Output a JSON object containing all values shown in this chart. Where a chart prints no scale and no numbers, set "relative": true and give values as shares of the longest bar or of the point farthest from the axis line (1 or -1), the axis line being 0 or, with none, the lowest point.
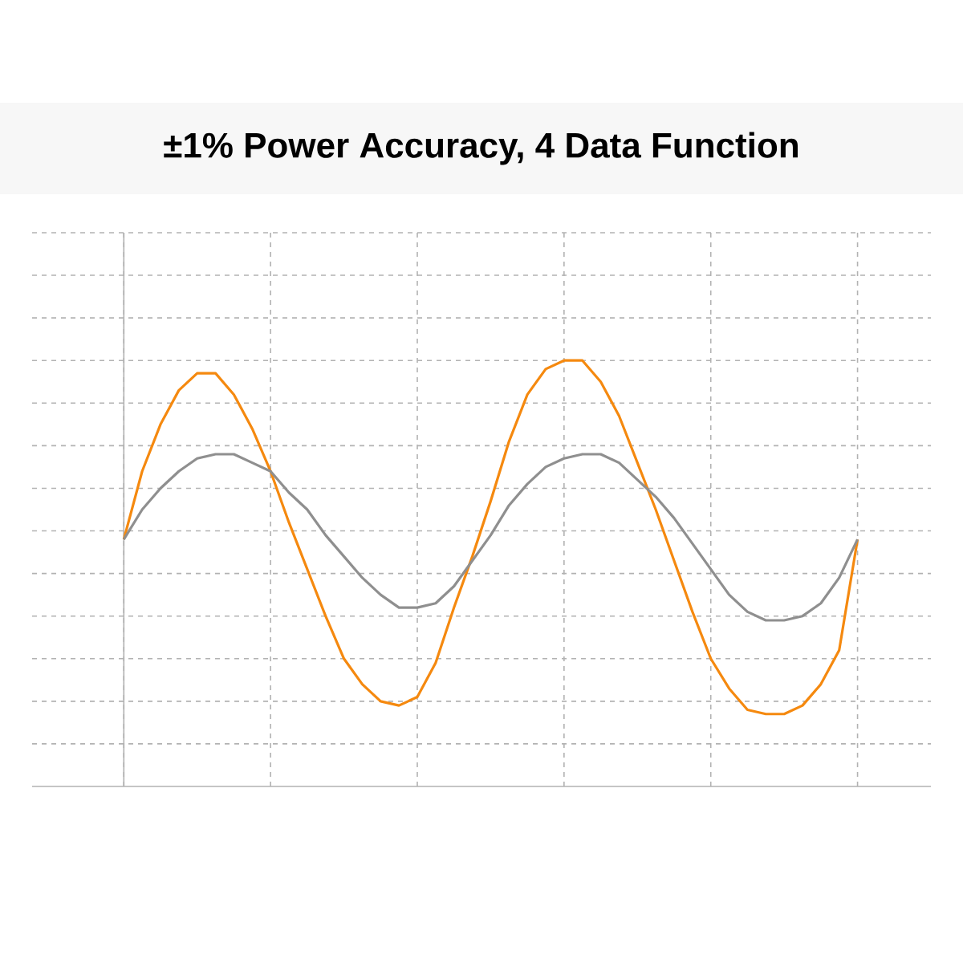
{
  "chart_data": {
    "type": "line",
    "title": "±1% Power Accuracy, 4 Data Function",
    "relative": true,
    "grid": true,
    "marker": "none",
    "line_style": "solid",
    "categories": [
      null,
      null,
      null,
      null,
      null,
      null,
      null,
      null,
      null,
      null,
      null,
      null,
      null,
      null,
      null,
      null,
      null,
      null,
      null,
      null,
      null,
      null,
      null,
      null,
      null,
      null,
      null,
      null,
      null,
      null,
      null,
      null,
      null,
      null,
      null,
      null,
      null,
      null,
      null,
      null,
      null
    ],
    "series": [
      {
        "color": "#f5890f",
        "values": [
          0.58,
          0.74,
          0.85,
          0.93,
          0.97,
          0.97,
          0.92,
          0.84,
          0.74,
          0.62,
          0.51,
          0.4,
          0.3,
          0.24,
          0.2,
          0.19,
          0.21,
          0.29,
          0.42,
          0.54,
          0.67,
          0.81,
          0.92,
          0.98,
          1.0,
          1.0,
          0.95,
          0.87,
          0.76,
          0.65,
          0.53,
          0.41,
          0.3,
          0.23,
          0.18,
          0.17,
          0.17,
          0.19,
          0.24,
          0.32,
          0.58
        ]
      },
      {
        "color": "#8f8f8f",
        "values": [
          0.58,
          0.65,
          0.7,
          0.74,
          0.77,
          0.78,
          0.78,
          0.76,
          0.74,
          0.69,
          0.65,
          0.59,
          0.54,
          0.49,
          0.45,
          0.42,
          0.42,
          0.43,
          0.47,
          0.53,
          0.59,
          0.66,
          0.71,
          0.75,
          0.77,
          0.78,
          0.78,
          0.76,
          0.72,
          0.68,
          0.63,
          0.57,
          0.51,
          0.45,
          0.41,
          0.39,
          0.39,
          0.4,
          0.43,
          0.49,
          0.58
        ]
      }
    ]
  }
}
